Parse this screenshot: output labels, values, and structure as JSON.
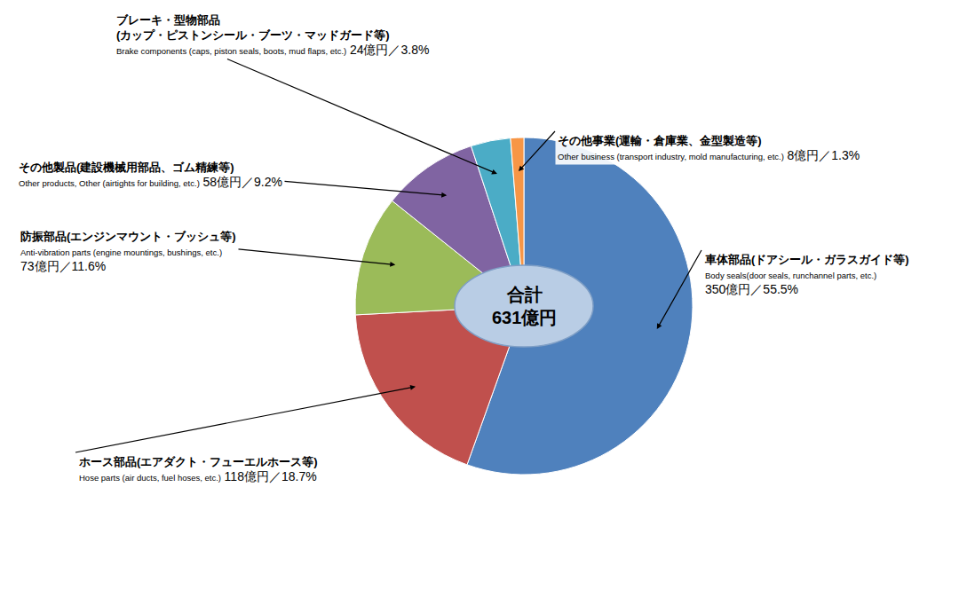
{
  "chart_data": {
    "type": "pie",
    "categories": [
      "車体部品(ドアシール・ガラスガイド等)",
      "ホース部品(エアダクト・フューエルホース等)",
      "防振部品(エンジンマウント・ブッシュ等)",
      "その他製品(建設機械用部品、ゴム精練等)",
      "ブレーキ・型物部品(カップ・ピストンシール・ブーツ・マッドガード等)",
      "その他事業(運輸・倉庫業、金型製造等)"
    ],
    "categories_en": [
      "Body seals(door seals, runchannel parts, etc.)",
      "Hose parts (air ducts, fuel hoses, etc.)",
      "Anti-vibration parts (engine mountings, bushings, etc.)",
      "Other products, Other (airtights for building, etc.)",
      "Brake components (caps, piston seals, boots, mud flaps, etc.)",
      "Other business (transport industry, mold manufacturing, etc.)"
    ],
    "values": [
      350,
      118,
      73,
      58,
      24,
      8
    ],
    "value_labels": [
      "350億円／55.5%",
      "118億円／18.7%",
      "73億円／11.6%",
      "58億円／9.2%",
      "24億円／3.8%",
      "8億円／1.3%"
    ],
    "colors": [
      "#4f81bd",
      "#c0504d",
      "#9bbb59",
      "#8064a2",
      "#4bacc6",
      "#f79646"
    ],
    "center_label": [
      "合計",
      "631億円"
    ],
    "data_labels": true
  }
}
